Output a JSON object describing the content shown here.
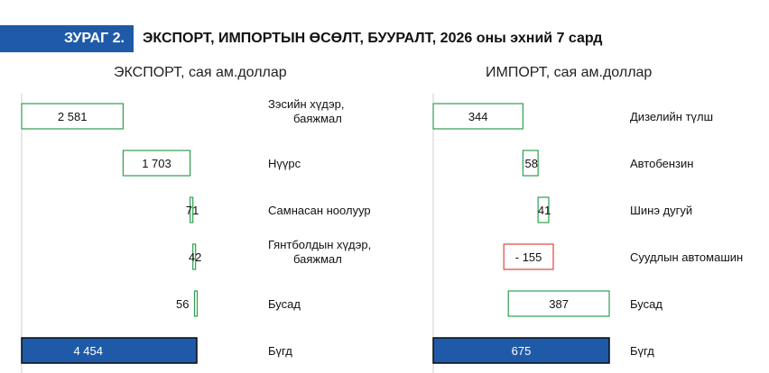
{
  "header": {
    "badge": "ЗУРАГ 2.",
    "title": "ЭКСПОРТ, ИМПОРТЫН ӨСӨЛТ, БУУРАЛТ, 2026 оны эхний 7 сард"
  },
  "colors": {
    "badge": "#1f5aa8",
    "increase_border": "#2e9e4f",
    "decrease_border": "#e0473c",
    "total_fill": "#1f5aa8",
    "total_border": "#0a0a0a"
  },
  "chart_data": [
    {
      "type": "bar",
      "orientation": "horizontal",
      "title": "ЭКСПОРТ, сая ам.доллар",
      "categories": [
        [
          "Зэсийн хүдэр,",
          "баяжмал"
        ],
        [
          "Нүүрс"
        ],
        [
          "Самнасан ноолуур"
        ],
        [
          "Гянтболдын хүдэр,",
          "баяжмал"
        ],
        [
          "Бусад"
        ],
        [
          "Бүгд"
        ]
      ],
      "values": [
        2581,
        1703,
        71,
        42,
        56,
        4454
      ],
      "value_labels": [
        "2 581",
        "1 703",
        "71",
        "42",
        "56",
        "4 454"
      ],
      "kinds": [
        "increase",
        "increase",
        "increase",
        "increase",
        "increase",
        "total"
      ],
      "xlim": [
        0,
        4454
      ]
    },
    {
      "type": "bar",
      "orientation": "horizontal",
      "title": "ИМПОРТ, сая ам.доллар",
      "categories": [
        [
          "Дизелийн түлш"
        ],
        [
          "Автобензин"
        ],
        [
          "Шинэ дугуй"
        ],
        [
          "Суудлын автомашин"
        ],
        [
          "Бусад"
        ],
        [
          "Бүгд"
        ]
      ],
      "values": [
        344,
        58,
        41,
        -155,
        387,
        675
      ],
      "value_labels": [
        "344",
        "58",
        "41",
        "- 155",
        "387",
        "675"
      ],
      "kinds": [
        "increase",
        "increase",
        "increase",
        "decrease",
        "increase",
        "total"
      ],
      "xlim": [
        0,
        675
      ]
    }
  ]
}
